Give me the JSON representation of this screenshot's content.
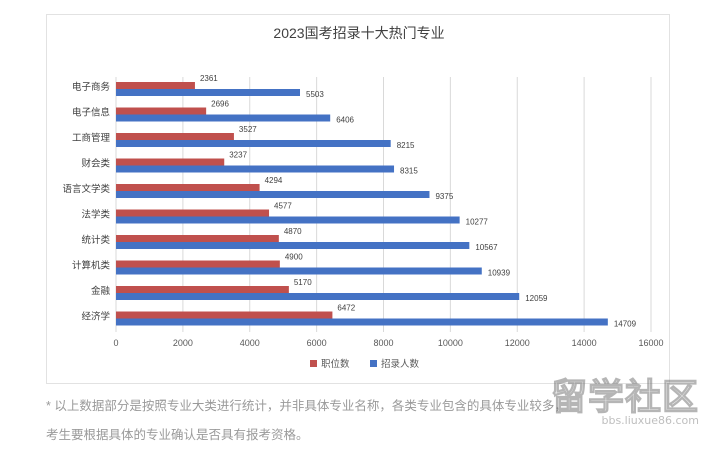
{
  "colors": {
    "series1": "#c0504d",
    "series2": "#4472c4",
    "grid": "#d9d9d9",
    "text": "#404040"
  },
  "chart_data": {
    "type": "bar",
    "orientation": "horizontal",
    "title": "2023国考招录十大热门专业",
    "categories": [
      "电子商务",
      "电子信息",
      "工商管理",
      "财会类",
      "语言文学类",
      "法学类",
      "统计类",
      "计算机类",
      "金融",
      "经济学"
    ],
    "series": [
      {
        "name": "职位数",
        "values": [
          2361,
          2696,
          3527,
          3237,
          4294,
          4577,
          4870,
          4900,
          5170,
          6472
        ]
      },
      {
        "name": "招录人数",
        "values": [
          5503,
          6406,
          8215,
          8315,
          9375,
          10277,
          10567,
          10939,
          12059,
          14709
        ]
      }
    ],
    "xlim": [
      0,
      16000
    ],
    "xticks": [
      0,
      2000,
      4000,
      6000,
      8000,
      10000,
      12000,
      14000,
      16000
    ],
    "grid": true,
    "legend_position": "bottom"
  },
  "footnote": {
    "line1": "* 以上数据部分是按照专业大类进行统计，并非具体专业名称，各类专业包含的具体专业较多，",
    "line2": "考生要根据具体的专业确认是否具有报考资格。"
  },
  "watermark": {
    "logo": "留学社区",
    "url": "bbs.liuxue86.com"
  }
}
